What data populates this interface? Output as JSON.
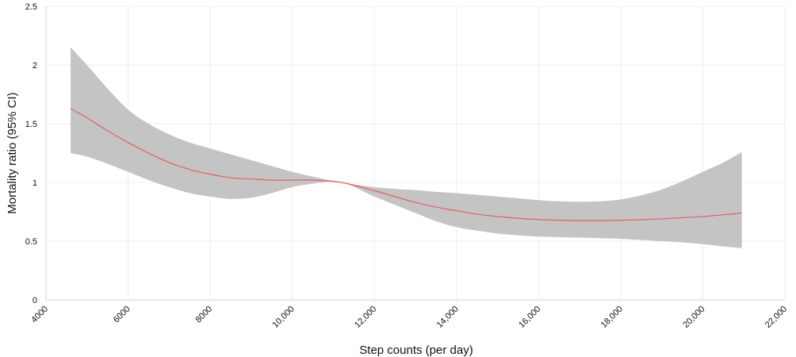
{
  "chart_data": {
    "type": "line",
    "title": "",
    "xlabel": "Step counts (per day)",
    "ylabel": "Mortality ratio (95% CI)",
    "xlim": [
      4000,
      22000
    ],
    "ylim": [
      0,
      2.5
    ],
    "grid": true,
    "x_ticks": [
      4000,
      6000,
      8000,
      10000,
      12000,
      14000,
      16000,
      18000,
      20000,
      22000
    ],
    "x_tick_labels": [
      "4000",
      "6000",
      "8000",
      "10,000",
      "12,000",
      "14,000",
      "16,000",
      "18,000",
      "20,000",
      "22,000"
    ],
    "y_ticks": [
      0,
      0.5,
      1,
      1.5,
      2,
      2.5
    ],
    "y_tick_labels": [
      "0",
      "0.5",
      "1",
      "1.5",
      "2",
      "2.5"
    ],
    "colors": {
      "line": "#e06060",
      "band": "#c4c4c4"
    },
    "series": [
      {
        "x": [
          4600,
          5000,
          5500,
          6000,
          6500,
          7000,
          7500,
          8000,
          8500,
          9000,
          9500,
          10000,
          10500,
          11200,
          12000,
          12500,
          13000,
          13500,
          14000,
          14500,
          15000,
          15500,
          16000,
          16500,
          17000,
          17500,
          18000,
          18500,
          19000,
          19500,
          20000,
          20500,
          20950
        ],
        "y": [
          1.63,
          1.55,
          1.44,
          1.34,
          1.25,
          1.17,
          1.11,
          1.07,
          1.04,
          1.03,
          1.02,
          1.02,
          1.02,
          1.0,
          0.93,
          0.88,
          0.83,
          0.79,
          0.76,
          0.73,
          0.71,
          0.695,
          0.685,
          0.678,
          0.675,
          0.675,
          0.678,
          0.683,
          0.69,
          0.7,
          0.71,
          0.725,
          0.74
        ],
        "lower": [
          1.25,
          1.22,
          1.16,
          1.09,
          1.02,
          0.96,
          0.91,
          0.88,
          0.86,
          0.87,
          0.91,
          0.96,
          0.99,
          1.0,
          0.88,
          0.81,
          0.74,
          0.67,
          0.62,
          0.59,
          0.565,
          0.55,
          0.54,
          0.535,
          0.53,
          0.525,
          0.52,
          0.51,
          0.5,
          0.49,
          0.475,
          0.455,
          0.44
        ],
        "upper": [
          2.15,
          2.0,
          1.8,
          1.62,
          1.5,
          1.41,
          1.34,
          1.29,
          1.24,
          1.19,
          1.14,
          1.09,
          1.05,
          1.0,
          0.96,
          0.945,
          0.935,
          0.92,
          0.91,
          0.895,
          0.88,
          0.865,
          0.85,
          0.84,
          0.835,
          0.84,
          0.855,
          0.89,
          0.94,
          1.01,
          1.09,
          1.17,
          1.26
        ]
      }
    ]
  }
}
